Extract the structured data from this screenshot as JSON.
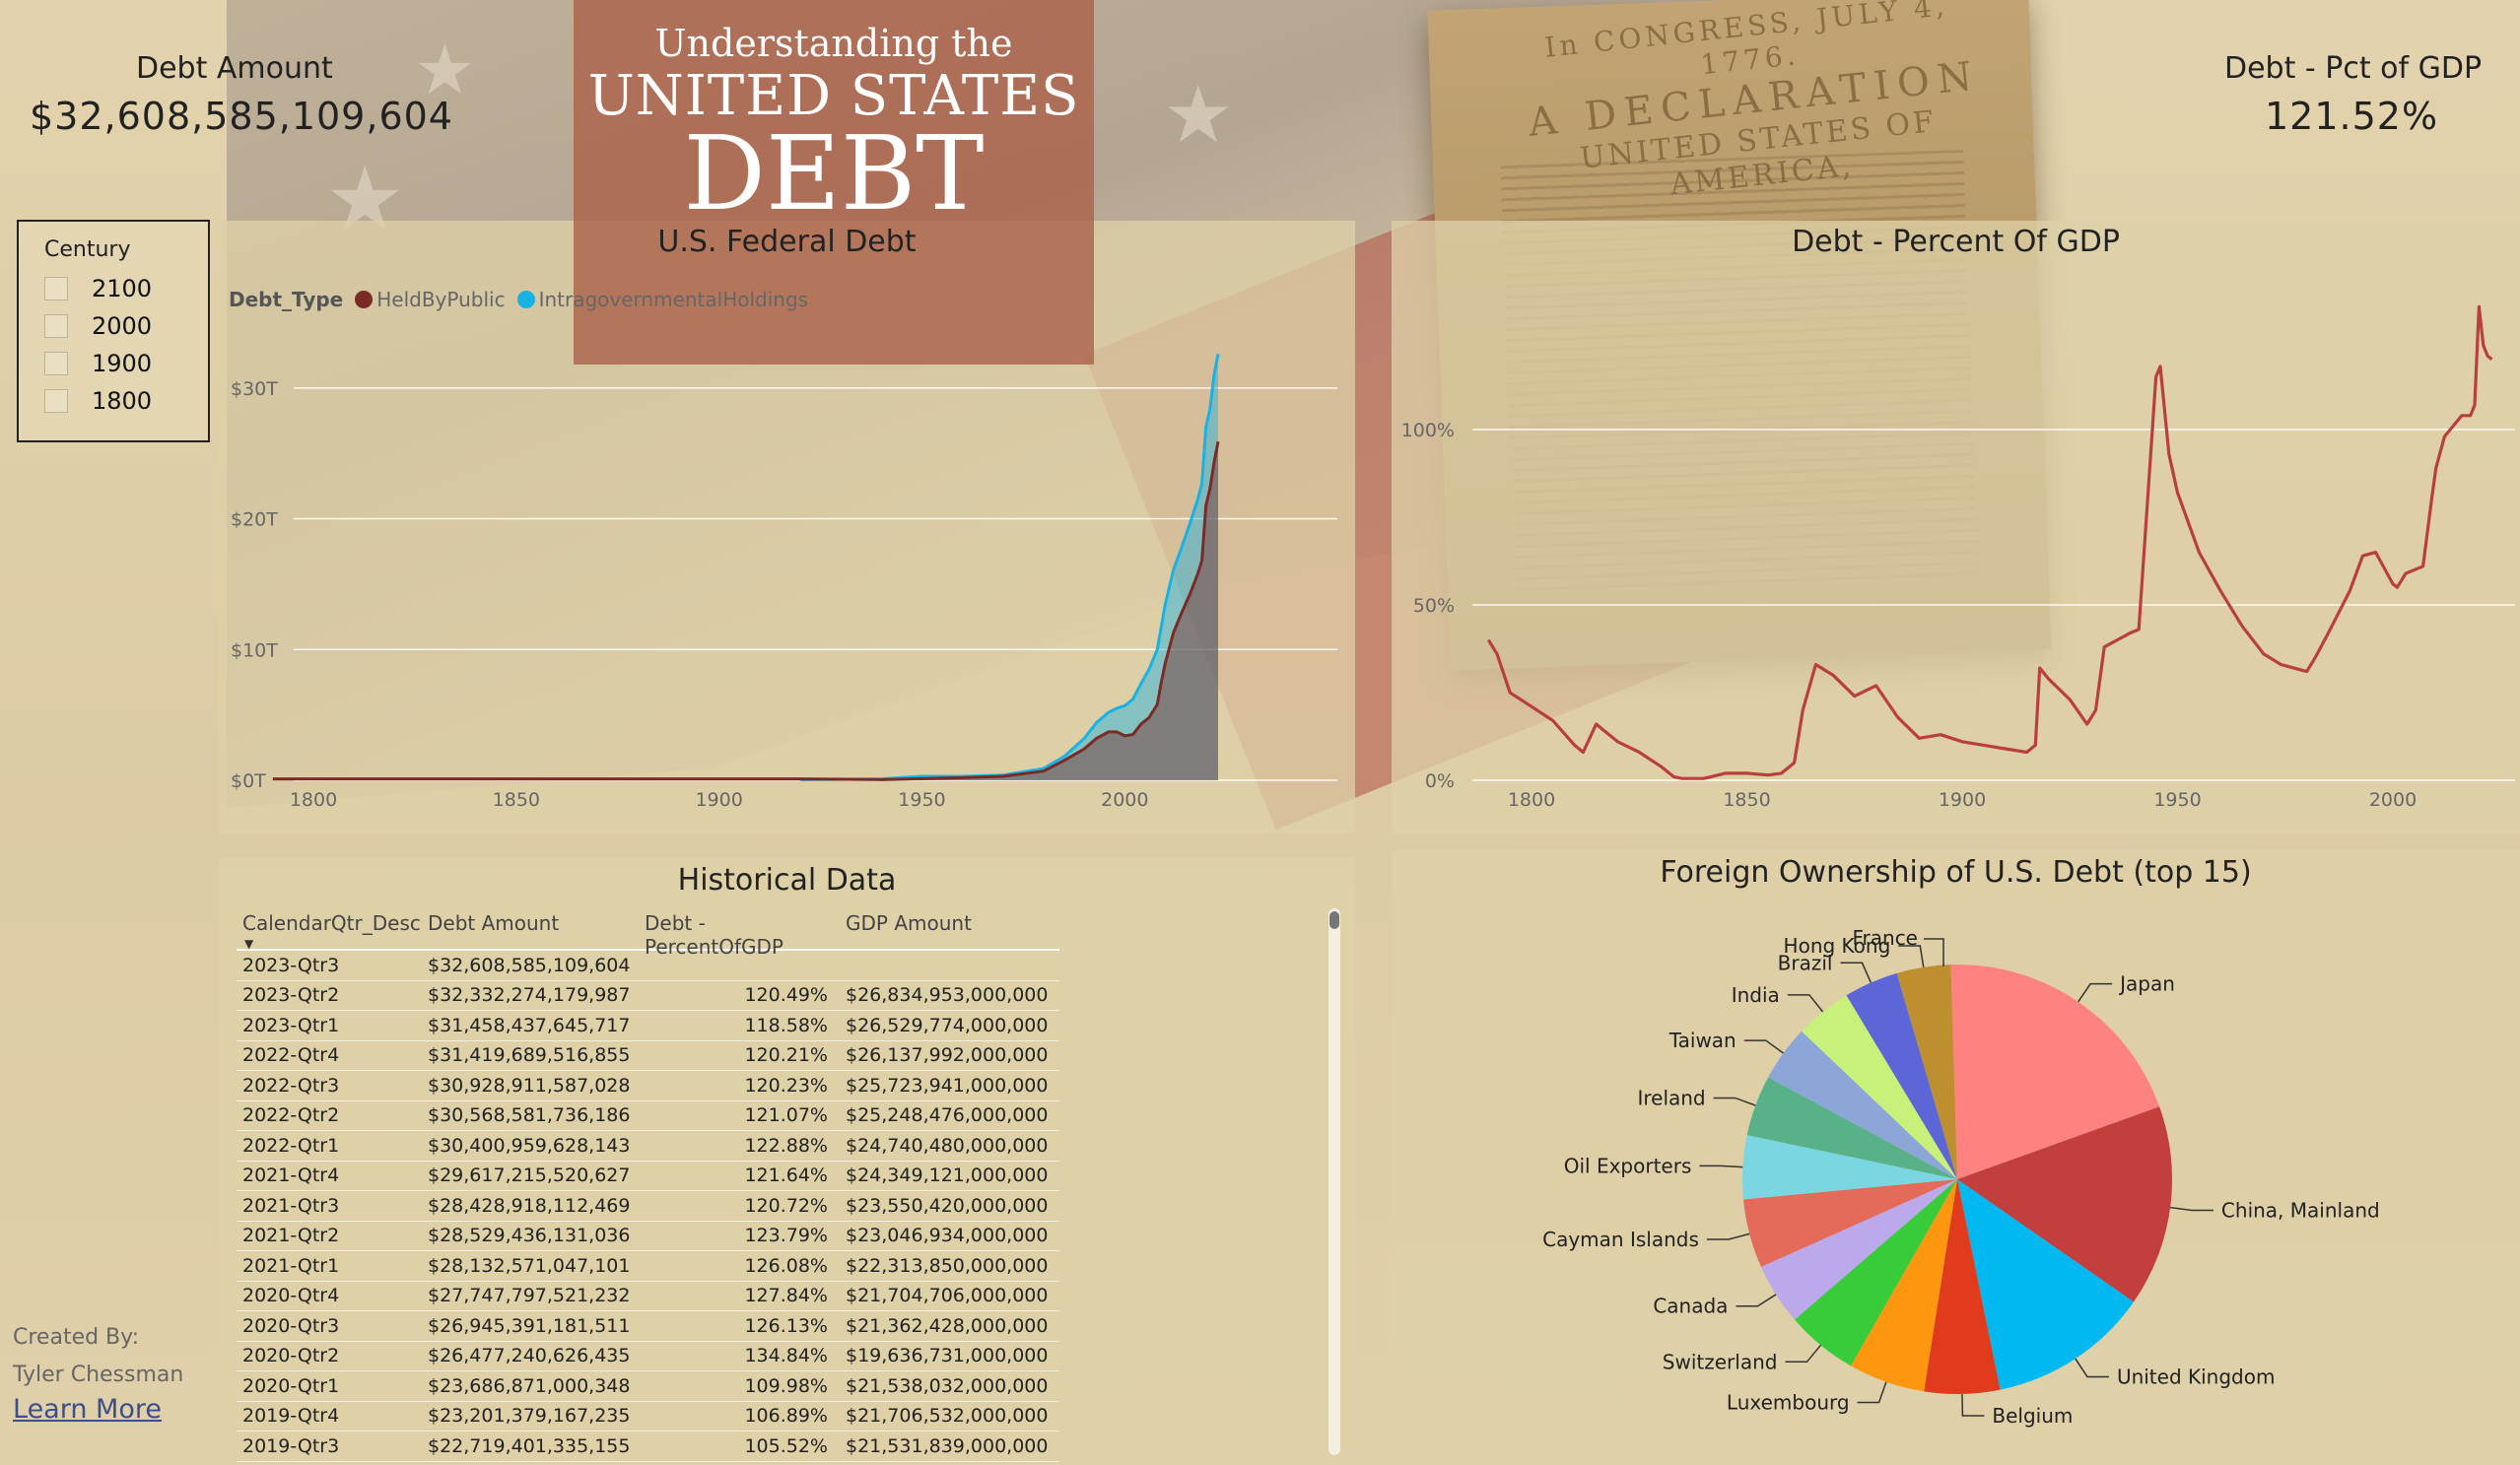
{
  "header": {
    "title_line1": "Understanding the",
    "title_line2": "UNITED STATES",
    "title_line3": "DEBT"
  },
  "kpis": {
    "debt_amount_label": "Debt Amount",
    "debt_amount_value": "$32,608,585,109,604",
    "debt_pct_label": "Debt - Pct of GDP",
    "debt_pct_value": "121.52%"
  },
  "background_text": {
    "line1": "In CONGRESS, JULY 4, 1776.",
    "line2": "A DECLARATION",
    "line3": "UNITED STATES OF AMERICA,"
  },
  "slicer": {
    "title": "Century",
    "items": [
      {
        "label": "2100",
        "checked": false
      },
      {
        "label": "2000",
        "checked": false
      },
      {
        "label": "1900",
        "checked": false
      },
      {
        "label": "1800",
        "checked": false
      }
    ]
  },
  "federal_debt": {
    "legend_title": "Debt_Type",
    "legend": [
      {
        "label": "HeldByPublic",
        "color": "#7b2a26"
      },
      {
        "label": "IntragovernmentalHoldings",
        "color": "#19b2e3"
      }
    ]
  },
  "historical": {
    "title": "Historical Data",
    "columns": [
      "CalendarQtr_Desc",
      "Debt Amount",
      "Debt - PercentOfGDP",
      "GDP Amount"
    ],
    "rows": [
      [
        "2023-Qtr3",
        "$32,608,585,109,604",
        "",
        ""
      ],
      [
        "2023-Qtr2",
        "$32,332,274,179,987",
        "120.49%",
        "$26,834,953,000,000"
      ],
      [
        "2023-Qtr1",
        "$31,458,437,645,717",
        "118.58%",
        "$26,529,774,000,000"
      ],
      [
        "2022-Qtr4",
        "$31,419,689,516,855",
        "120.21%",
        "$26,137,992,000,000"
      ],
      [
        "2022-Qtr3",
        "$30,928,911,587,028",
        "120.23%",
        "$25,723,941,000,000"
      ],
      [
        "2022-Qtr2",
        "$30,568,581,736,186",
        "121.07%",
        "$25,248,476,000,000"
      ],
      [
        "2022-Qtr1",
        "$30,400,959,628,143",
        "122.88%",
        "$24,740,480,000,000"
      ],
      [
        "2021-Qtr4",
        "$29,617,215,520,627",
        "121.64%",
        "$24,349,121,000,000"
      ],
      [
        "2021-Qtr3",
        "$28,428,918,112,469",
        "120.72%",
        "$23,550,420,000,000"
      ],
      [
        "2021-Qtr2",
        "$28,529,436,131,036",
        "123.79%",
        "$23,046,934,000,000"
      ],
      [
        "2021-Qtr1",
        "$28,132,571,047,101",
        "126.08%",
        "$22,313,850,000,000"
      ],
      [
        "2020-Qtr4",
        "$27,747,797,521,232",
        "127.84%",
        "$21,704,706,000,000"
      ],
      [
        "2020-Qtr3",
        "$26,945,391,181,511",
        "126.13%",
        "$21,362,428,000,000"
      ],
      [
        "2020-Qtr2",
        "$26,477,240,626,435",
        "134.84%",
        "$19,636,731,000,000"
      ],
      [
        "2020-Qtr1",
        "$23,686,871,000,348",
        "109.98%",
        "$21,538,032,000,000"
      ],
      [
        "2019-Qtr4",
        "$23,201,379,167,235",
        "106.89%",
        "$21,706,532,000,000"
      ],
      [
        "2019-Qtr3",
        "$22,719,401,335,155",
        "105.52%",
        "$21,531,839,000,000"
      ]
    ]
  },
  "credits": {
    "created_by": "Created By:",
    "author": "Tyler Chessman",
    "learn_more": "Learn More"
  },
  "chart_data": [
    {
      "id": "federal_debt",
      "type": "area",
      "title": "U.S. Federal Debt",
      "xlim": [
        1790,
        2023
      ],
      "ylim": [
        0,
        33
      ],
      "x_ticks": [
        1800,
        1850,
        1900,
        1950,
        2000
      ],
      "y_ticks": [
        0,
        10,
        20,
        30
      ],
      "y_tick_labels": [
        "$0T",
        "$10T",
        "$20T",
        "$30T"
      ],
      "grid": true,
      "series": [
        {
          "name": "HeldByPublic",
          "color": "#7b2a26",
          "points": [
            [
              1790,
              0.1
            ],
            [
              1850,
              0.1
            ],
            [
              1900,
              0.1
            ],
            [
              1920,
              0.1
            ],
            [
              1940,
              0.05
            ],
            [
              1960,
              0.2
            ],
            [
              1970,
              0.3
            ],
            [
              1980,
              0.7
            ],
            [
              1985,
              1.5
            ],
            [
              1990,
              2.4
            ],
            [
              1993,
              3.2
            ],
            [
              1996,
              3.7
            ],
            [
              1998,
              3.7
            ],
            [
              2000,
              3.4
            ],
            [
              2002,
              3.5
            ],
            [
              2004,
              4.3
            ],
            [
              2006,
              4.8
            ],
            [
              2008,
              5.8
            ],
            [
              2009,
              7.5
            ],
            [
              2010,
              9.0
            ],
            [
              2012,
              11.3
            ],
            [
              2014,
              12.8
            ],
            [
              2016,
              14.2
            ],
            [
              2018,
              15.8
            ],
            [
              2019,
              16.8
            ],
            [
              2020,
              21.0
            ],
            [
              2021,
              22.3
            ],
            [
              2022,
              24.3
            ],
            [
              2023,
              25.9
            ]
          ]
        },
        {
          "name": "IntragovernmentalHoldings",
          "color": "#19b2e3",
          "points": [
            [
              1920,
              0.05
            ],
            [
              1940,
              0.1
            ],
            [
              1950,
              0.3
            ],
            [
              1960,
              0.3
            ],
            [
              1970,
              0.4
            ],
            [
              1980,
              0.9
            ],
            [
              1985,
              1.8
            ],
            [
              1990,
              3.2
            ],
            [
              1993,
              4.4
            ],
            [
              1996,
              5.2
            ],
            [
              1998,
              5.5
            ],
            [
              2000,
              5.7
            ],
            [
              2002,
              6.2
            ],
            [
              2004,
              7.4
            ],
            [
              2006,
              8.5
            ],
            [
              2008,
              10.0
            ],
            [
              2010,
              13.5
            ],
            [
              2012,
              16.1
            ],
            [
              2014,
              17.8
            ],
            [
              2016,
              19.6
            ],
            [
              2018,
              21.5
            ],
            [
              2019,
              22.7
            ],
            [
              2020,
              27.0
            ],
            [
              2021,
              28.4
            ],
            [
              2022,
              31.0
            ],
            [
              2023,
              32.6
            ]
          ]
        }
      ]
    },
    {
      "id": "debt_pct_gdp",
      "type": "line",
      "title": "Debt - Percent Of GDP",
      "xlim": [
        1790,
        2023
      ],
      "ylim": [
        0,
        130
      ],
      "x_ticks": [
        1800,
        1850,
        1900,
        1950,
        2000
      ],
      "y_ticks": [
        0,
        50,
        100
      ],
      "y_tick_labels": [
        "0%",
        "50%",
        "100%"
      ],
      "grid": true,
      "color": "#b93f3e",
      "points": [
        [
          1790,
          40
        ],
        [
          1792,
          36
        ],
        [
          1795,
          25
        ],
        [
          1800,
          21
        ],
        [
          1805,
          17
        ],
        [
          1810,
          10
        ],
        [
          1812,
          8
        ],
        [
          1815,
          16
        ],
        [
          1818,
          13
        ],
        [
          1820,
          11
        ],
        [
          1825,
          8
        ],
        [
          1830,
          4
        ],
        [
          1833,
          1
        ],
        [
          1835,
          0.5
        ],
        [
          1840,
          0.5
        ],
        [
          1845,
          2
        ],
        [
          1850,
          2
        ],
        [
          1855,
          1.5
        ],
        [
          1858,
          2
        ],
        [
          1861,
          5
        ],
        [
          1863,
          20
        ],
        [
          1866,
          33
        ],
        [
          1870,
          30
        ],
        [
          1875,
          24
        ],
        [
          1880,
          27
        ],
        [
          1885,
          18
        ],
        [
          1890,
          12
        ],
        [
          1895,
          13
        ],
        [
          1900,
          11
        ],
        [
          1905,
          10
        ],
        [
          1910,
          9
        ],
        [
          1915,
          8
        ],
        [
          1917,
          10
        ],
        [
          1918,
          32
        ],
        [
          1920,
          29
        ],
        [
          1925,
          23
        ],
        [
          1929,
          16
        ],
        [
          1931,
          20
        ],
        [
          1933,
          38
        ],
        [
          1936,
          40
        ],
        [
          1939,
          42
        ],
        [
          1941,
          43
        ],
        [
          1943,
          79
        ],
        [
          1945,
          115
        ],
        [
          1946,
          118
        ],
        [
          1948,
          93
        ],
        [
          1950,
          82
        ],
        [
          1955,
          65
        ],
        [
          1960,
          54
        ],
        [
          1965,
          44
        ],
        [
          1970,
          36
        ],
        [
          1974,
          33
        ],
        [
          1977,
          32
        ],
        [
          1980,
          31
        ],
        [
          1982,
          35
        ],
        [
          1985,
          42
        ],
        [
          1990,
          54
        ],
        [
          1993,
          64
        ],
        [
          1996,
          65
        ],
        [
          2000,
          56
        ],
        [
          2001,
          55
        ],
        [
          2003,
          59
        ],
        [
          2007,
          61
        ],
        [
          2009,
          80
        ],
        [
          2010,
          89
        ],
        [
          2012,
          98
        ],
        [
          2014,
          101
        ],
        [
          2016,
          104
        ],
        [
          2018,
          104
        ],
        [
          2019,
          107
        ],
        [
          2020,
          135
        ],
        [
          2021,
          124
        ],
        [
          2022,
          121
        ],
        [
          2023,
          120
        ]
      ]
    },
    {
      "id": "foreign_ownership",
      "type": "pie",
      "title": "Foreign Ownership of U.S. Debt (top 15)",
      "slices": [
        {
          "label": "Japan",
          "value": 1101,
          "color": "#fd8280"
        },
        {
          "label": "China, Mainland",
          "value": 835,
          "color": "#c23f3e"
        },
        {
          "label": "United Kingdom",
          "value": 668,
          "color": "#01b8f0"
        },
        {
          "label": "Belgium",
          "value": 313,
          "color": "#e03b1c"
        },
        {
          "label": "Luxembourg",
          "value": 318,
          "color": "#ff9610"
        },
        {
          "label": "Switzerland",
          "value": 298,
          "color": "#38cc3a"
        },
        {
          "label": "Canada",
          "value": 256,
          "color": "#bba9eb"
        },
        {
          "label": "Cayman Islands",
          "value": 286,
          "color": "#e46a59"
        },
        {
          "label": "Oil Exporters",
          "value": 264,
          "color": "#7ad7e1"
        },
        {
          "label": "Ireland",
          "value": 252,
          "color": "#58b189"
        },
        {
          "label": "Taiwan",
          "value": 233,
          "color": "#8ca6d7"
        },
        {
          "label": "India",
          "value": 235,
          "color": "#c7f17a"
        },
        {
          "label": "Brazil",
          "value": 225,
          "color": "#5c66d6"
        },
        {
          "label": "Hong Kong",
          "value": 224,
          "color": "#bd8f2e"
        },
        {
          "label": "France",
          "value": 0,
          "color": "#d35f44"
        }
      ]
    }
  ]
}
